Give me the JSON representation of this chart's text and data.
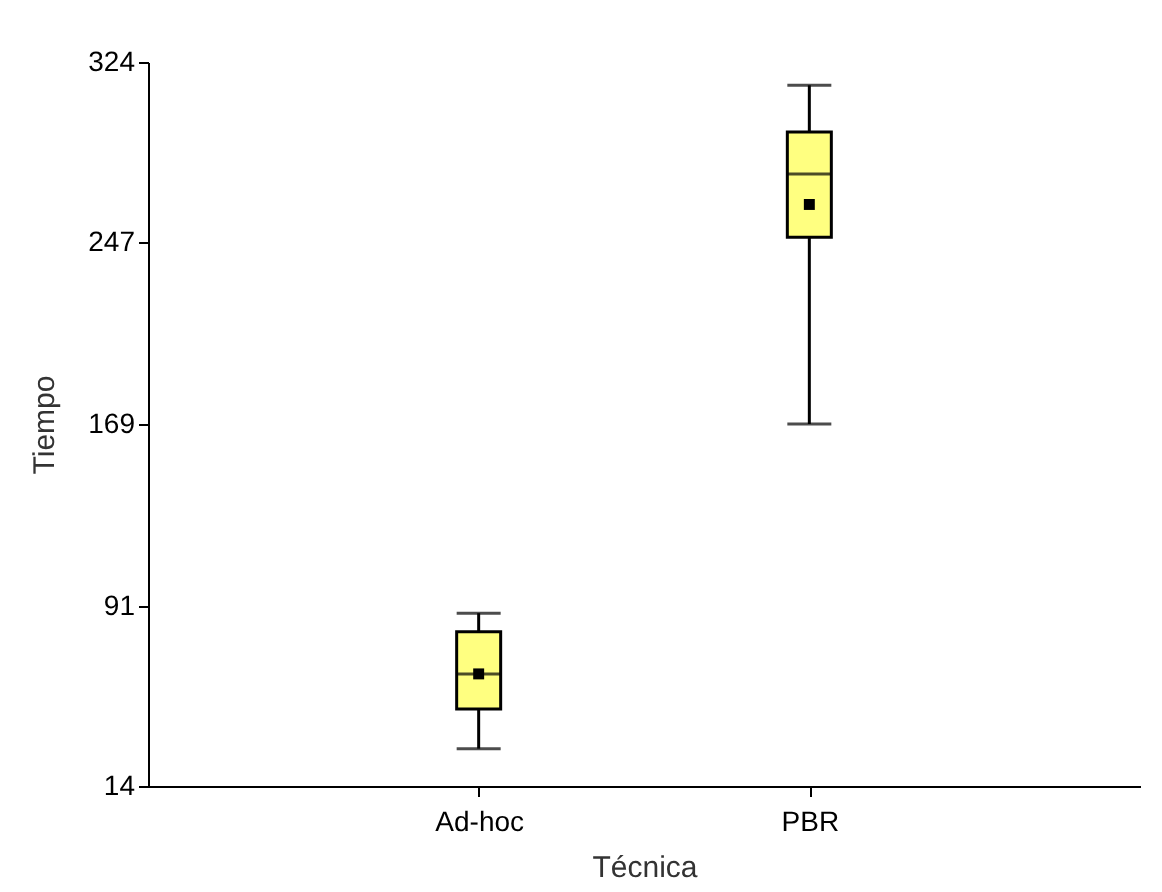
{
  "chart_data": {
    "type": "box",
    "xlabel": "Técnica",
    "ylabel": "Tiempo",
    "categories": [
      "Ad-hoc",
      "PBR"
    ],
    "boxes": [
      {
        "low": 30,
        "q1": 47,
        "median": 62,
        "q3": 80,
        "high": 88,
        "mean": 62
      },
      {
        "low": 169,
        "q1": 249,
        "median": 276,
        "q3": 294,
        "high": 314,
        "mean": 263
      }
    ],
    "color": "#ffff80",
    "ylim": [
      14,
      324
    ],
    "yticks": [
      14,
      91,
      169,
      247,
      324
    ],
    "grid": false,
    "marker": "square"
  }
}
